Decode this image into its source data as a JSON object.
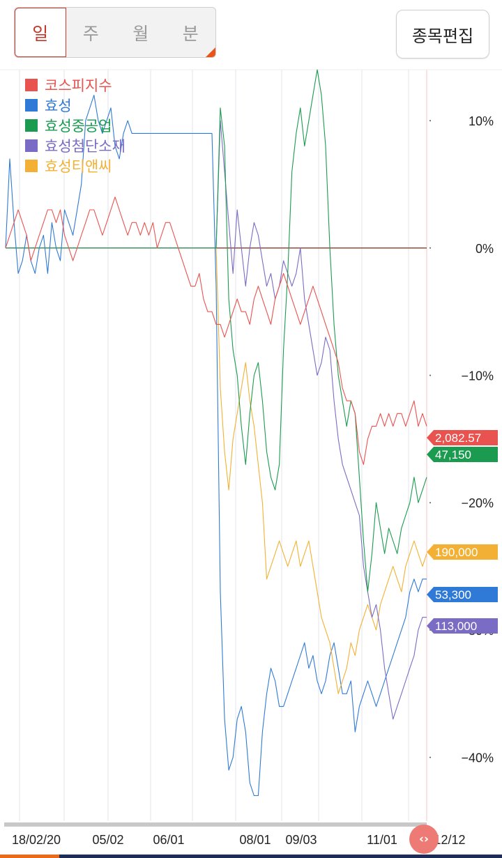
{
  "period_tabs": [
    "일",
    "주",
    "월",
    "분"
  ],
  "edit_button": "종목편집",
  "chart_data": {
    "type": "line",
    "ylabel_ticks": [
      "10%",
      "0%",
      "−10%",
      "−20%",
      "−30%",
      "−40%"
    ],
    "ylim": [
      -45,
      14
    ],
    "x_ticks": [
      "18/02/20",
      "05/02",
      "06/01",
      "08/01",
      "09/03",
      "11/01",
      "12/12"
    ],
    "grid": true,
    "legend_placement": "top-left",
    "series": [
      {
        "name": "코스피지수",
        "color": "#e8534f",
        "last_label": "2,082.57",
        "values": [
          0,
          1,
          2,
          3,
          2,
          1,
          -1,
          0,
          1,
          2,
          3,
          3,
          2,
          3,
          1,
          0,
          -1,
          0,
          1,
          2,
          3,
          3,
          2,
          1,
          2,
          3,
          4,
          3,
          2,
          1,
          2,
          2,
          1,
          2,
          1,
          2,
          0,
          1,
          2,
          2,
          1,
          0,
          -1,
          -2,
          -3,
          -3,
          -2,
          -4,
          -5,
          -5,
          -6,
          -6,
          -7,
          -6,
          -5,
          -4,
          -5,
          -5,
          -6,
          -4,
          -3,
          -4,
          -5,
          -6,
          -4,
          -3,
          -2,
          -3,
          -4,
          -5,
          -6,
          -5,
          -4,
          -3,
          -4,
          -5,
          -6,
          -7,
          -8,
          -9,
          -11,
          -12,
          -12,
          -13,
          -16,
          -17,
          -15,
          -14,
          -14,
          -13,
          -14,
          -13,
          -14,
          -13,
          -13,
          -14,
          -13,
          -12,
          -14,
          -13,
          -14
        ]
      },
      {
        "name": "효성",
        "color": "#2f7ad6",
        "last_label": "53,300",
        "values": [
          0,
          7,
          2,
          -2,
          -1,
          1,
          -1,
          -2,
          0,
          1,
          -2,
          2,
          0,
          -1,
          3,
          2,
          1,
          3,
          5,
          10,
          11,
          12,
          10,
          9,
          10,
          11,
          8,
          7,
          9,
          10,
          9,
          9,
          9,
          9,
          9,
          9,
          9,
          9,
          9,
          9,
          9,
          9,
          9,
          9,
          9,
          9,
          9,
          9,
          9,
          9,
          -3,
          -27,
          -37,
          -41,
          -40,
          -37,
          -36,
          -38,
          -42,
          -43,
          -43,
          -38,
          -35,
          -33,
          -34,
          -36,
          -36,
          -35,
          -34,
          -33,
          -32,
          -31,
          -33,
          -32,
          -34,
          -35,
          -34,
          -32,
          -31,
          -33,
          -35,
          -35,
          -34,
          -38,
          -36,
          -35,
          -34,
          -35,
          -36,
          -35,
          -34,
          -33,
          -32,
          -31,
          -30,
          -29,
          -27,
          -26,
          -27,
          -26,
          -26
        ]
      },
      {
        "name": "효성중공업",
        "color": "#1a9b4f",
        "last_label": "47,150",
        "values": [
          0,
          0,
          0,
          0,
          0,
          0,
          0,
          0,
          0,
          0,
          0,
          0,
          0,
          0,
          0,
          0,
          0,
          0,
          0,
          0,
          0,
          0,
          0,
          0,
          0,
          0,
          0,
          0,
          0,
          0,
          0,
          0,
          0,
          0,
          0,
          0,
          0,
          0,
          0,
          0,
          0,
          0,
          0,
          0,
          0,
          0,
          0,
          0,
          0,
          0,
          0,
          11,
          8,
          -4,
          -8,
          -10,
          -14,
          -17,
          -13,
          -10,
          -9,
          -12,
          -16,
          -18,
          -19,
          -17,
          -8,
          -2,
          6,
          9,
          11,
          8,
          10,
          12,
          14,
          12,
          8,
          0,
          -6,
          -10,
          -12,
          -14,
          -12,
          -13,
          -18,
          -23,
          -27,
          -24,
          -20,
          -22,
          -24,
          -22,
          -23,
          -24,
          -22,
          -21,
          -20,
          -18,
          -20,
          -19,
          -18
        ]
      },
      {
        "name": "효성첨단소재",
        "color": "#7a6cc4",
        "last_label": "113,000",
        "values": [
          0,
          0,
          0,
          0,
          0,
          0,
          0,
          0,
          0,
          0,
          0,
          0,
          0,
          0,
          0,
          0,
          0,
          0,
          0,
          0,
          0,
          0,
          0,
          0,
          0,
          0,
          0,
          0,
          0,
          0,
          0,
          0,
          0,
          0,
          0,
          0,
          0,
          0,
          0,
          0,
          0,
          0,
          0,
          0,
          0,
          0,
          0,
          0,
          0,
          0,
          0,
          10,
          6,
          2,
          -2,
          3,
          0,
          -3,
          0,
          2,
          1,
          -1,
          -3,
          -2,
          -4,
          -3,
          -1,
          -2,
          -3,
          -2,
          0,
          -4,
          -6,
          -8,
          -10,
          -9,
          -7,
          -8,
          -12,
          -15,
          -17,
          -18,
          -19,
          -20,
          -21,
          -25,
          -27,
          -29,
          -28,
          -30,
          -33,
          -35,
          -37,
          -36,
          -35,
          -34,
          -33,
          -32,
          -30,
          -29,
          -29
        ]
      },
      {
        "name": "효성티앤씨",
        "color": "#f2b134",
        "last_label": "190,000",
        "values": [
          0,
          0,
          0,
          0,
          0,
          0,
          0,
          0,
          0,
          0,
          0,
          0,
          0,
          0,
          0,
          0,
          0,
          0,
          0,
          0,
          0,
          0,
          0,
          0,
          0,
          0,
          0,
          0,
          0,
          0,
          0,
          0,
          0,
          0,
          0,
          0,
          0,
          0,
          0,
          0,
          0,
          0,
          0,
          0,
          0,
          0,
          0,
          0,
          0,
          0,
          0,
          -11,
          -16,
          -19,
          -15,
          -13,
          -11,
          -9,
          -12,
          -14,
          -17,
          -20,
          -26,
          -25,
          -24,
          -23,
          -24,
          -25,
          -24,
          -23,
          -25,
          -24,
          -23,
          -25,
          -27,
          -29,
          -30,
          -31,
          -33,
          -35,
          -34,
          -33,
          -31,
          -32,
          -30,
          -29,
          -28,
          -29,
          -30,
          -28,
          -27,
          -26,
          -25,
          -26,
          -27,
          -25,
          -24,
          -23,
          -24,
          -25,
          -24
        ]
      }
    ]
  }
}
